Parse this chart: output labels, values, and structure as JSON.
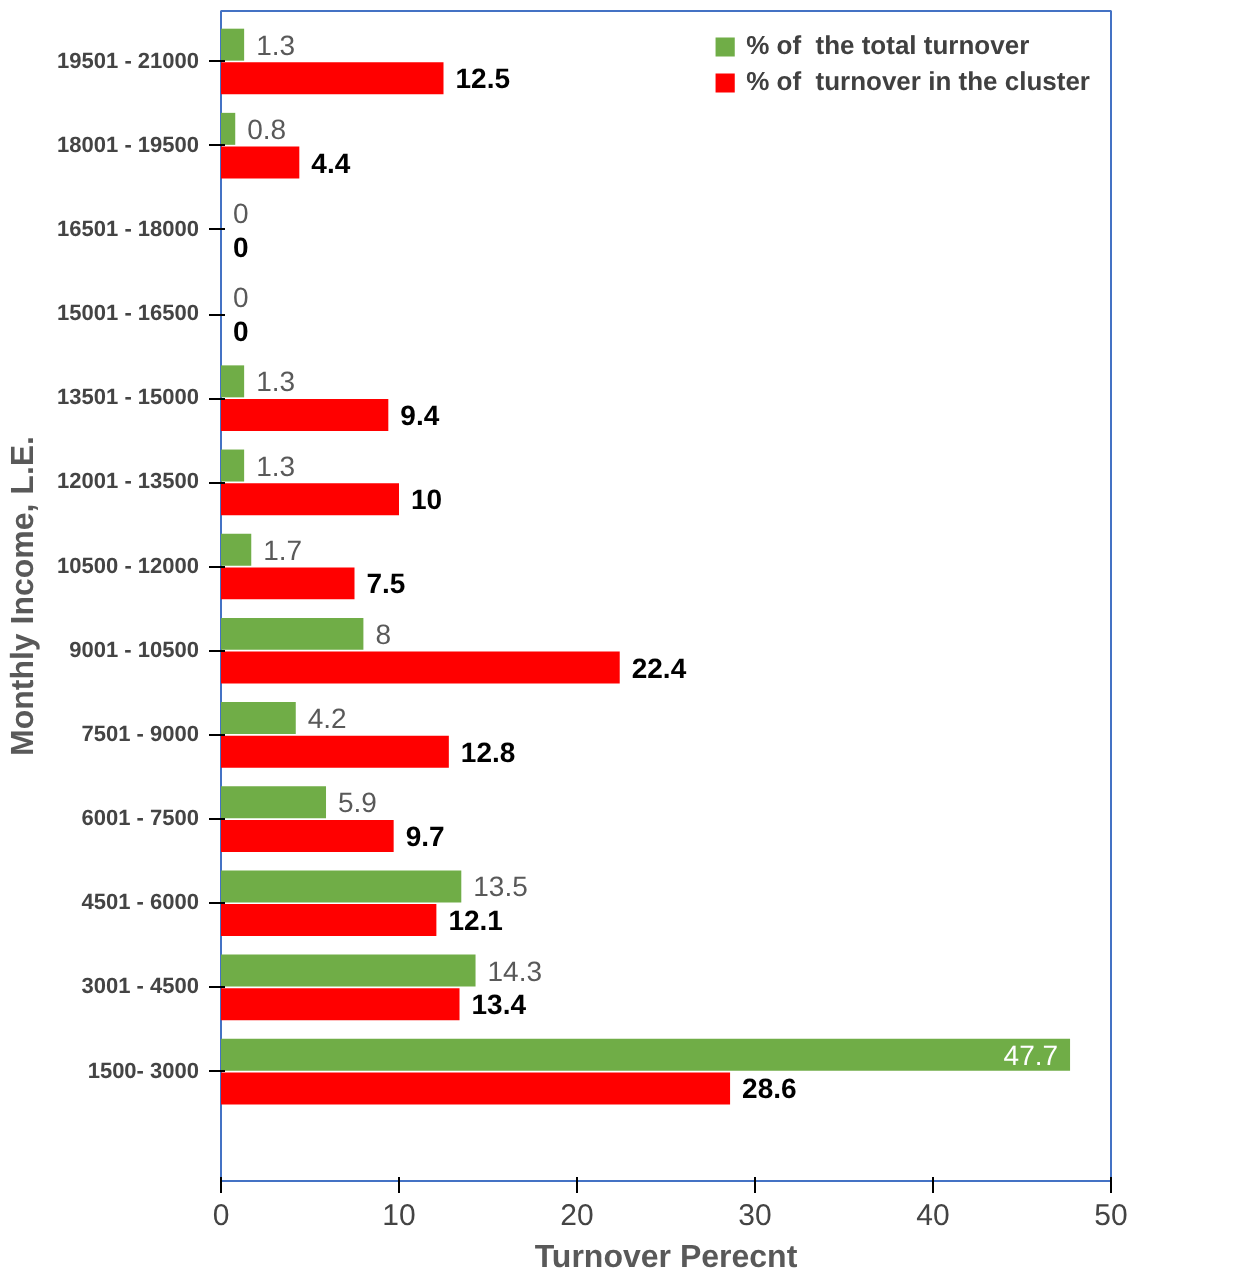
{
  "chart_data": {
    "type": "bar",
    "orientation": "horizontal",
    "xlabel": "Turnover Perecnt",
    "ylabel": "Monthly Income, L.E.",
    "categories": [
      "19501 - 21000",
      "18001 - 19500",
      "16501 - 18000",
      "15001 - 16500",
      "13501 - 15000",
      "12001 - 13500",
      "10500 - 12000",
      "9001 - 10500",
      "7501 - 9000",
      "6001 - 7500",
      "4501 - 6000",
      "3001 - 4500",
      "1500- 3000"
    ],
    "series": [
      {
        "name": "% of  the total turnover",
        "color": "#70ad47",
        "values": [
          1.3,
          0.8,
          0,
          0,
          1.3,
          1.3,
          1.7,
          8,
          4.2,
          5.9,
          13.5,
          14.3,
          47.7
        ]
      },
      {
        "name": "% of  turnover in the cluster",
        "color": "#ff0000",
        "values": [
          12.5,
          4.4,
          0,
          0,
          9.4,
          10,
          7.5,
          22.4,
          12.8,
          9.7,
          12.1,
          13.4,
          28.6
        ]
      }
    ],
    "xlim": [
      0,
      50
    ],
    "xticks": [
      0,
      10,
      20,
      30,
      40,
      50
    ],
    "grid": false,
    "legend": "top right",
    "data_labels": true
  }
}
